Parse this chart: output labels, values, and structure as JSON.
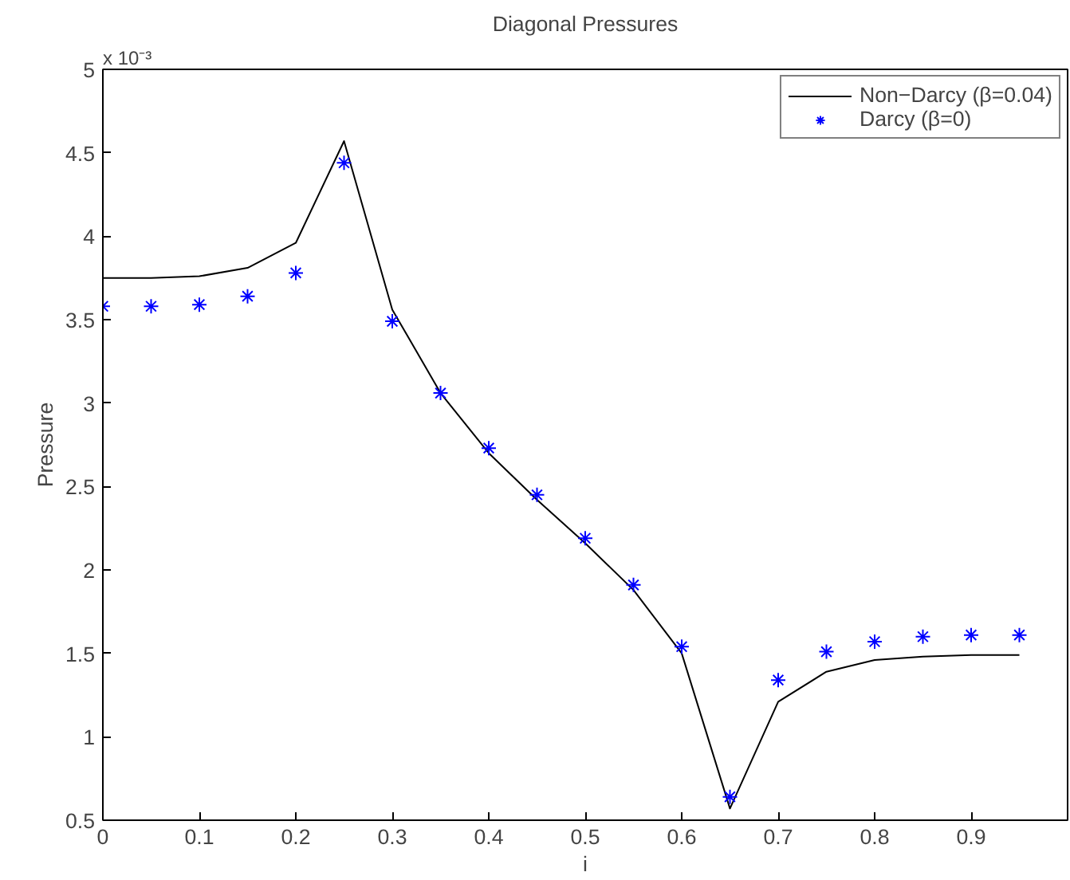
{
  "chart_data": {
    "type": "line",
    "title": "Diagonal Pressures",
    "xlabel": "i",
    "ylabel": "Pressure",
    "annotations": [
      "x 10⁻³"
    ],
    "x": [
      0,
      0.05,
      0.1,
      0.15,
      0.2,
      0.25,
      0.3,
      0.35,
      0.4,
      0.45,
      0.5,
      0.55,
      0.6,
      0.65,
      0.7,
      0.75,
      0.8,
      0.85,
      0.9,
      0.95
    ],
    "series": [
      {
        "name": "Non−Darcy (β=0.04)",
        "color": "#000000",
        "marker": "none",
        "values": [
          3.75,
          3.75,
          3.76,
          3.81,
          3.96,
          4.57,
          3.56,
          3.06,
          2.7,
          2.42,
          2.16,
          1.88,
          1.5,
          0.57,
          1.21,
          1.39,
          1.46,
          1.48,
          1.49,
          1.49
        ]
      },
      {
        "name": "Darcy (β=0)",
        "type": "scatter",
        "color": "#0000ff",
        "marker": "cross",
        "values": [
          3.58,
          3.58,
          3.59,
          3.64,
          3.78,
          4.44,
          3.49,
          3.06,
          2.73,
          2.45,
          2.19,
          1.91,
          1.54,
          0.64,
          1.34,
          1.51,
          1.57,
          1.6,
          1.61,
          1.61
        ]
      }
    ],
    "xlim": [
      0,
      1
    ],
    "xticks": [
      0,
      0.1,
      0.2,
      0.3,
      0.4,
      0.5,
      0.6,
      0.7,
      0.8,
      0.9
    ],
    "ylim": [
      0.5,
      5
    ],
    "yticks": [
      0.5,
      1,
      1.5,
      2,
      2.5,
      3,
      3.5,
      4,
      4.5,
      5
    ],
    "grid": false,
    "legend": "top right"
  }
}
